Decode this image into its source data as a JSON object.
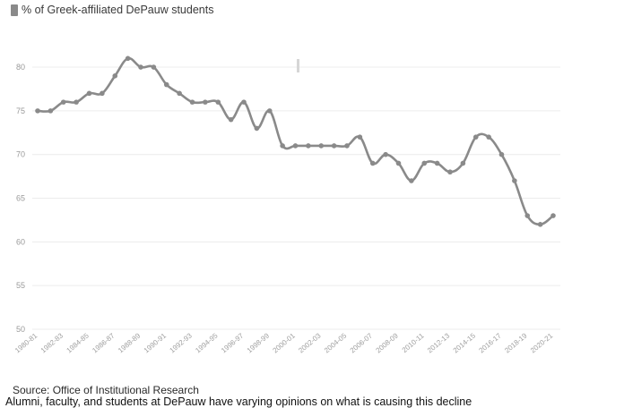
{
  "legend": {
    "label": "% of Greek-affiliated DePauw students",
    "color": "#8a8a8a"
  },
  "chart_data": {
    "type": "line",
    "title": "",
    "xlabel": "",
    "ylabel": "",
    "ylim": [
      50,
      84
    ],
    "yticks": [
      50,
      55,
      60,
      65,
      70,
      75,
      80
    ],
    "grid": true,
    "legend_position": "top-left",
    "line_color": "#8a8a8a",
    "x": [
      "1980-81",
      "1981-82",
      "1982-83",
      "1983-84",
      "1984-85",
      "1985-86",
      "1986-87",
      "1987-88",
      "1988-89",
      "1989-90",
      "1990-91",
      "1991-92",
      "1992-93",
      "1993-94",
      "1994-95",
      "1995-96",
      "1996-97",
      "1997-98",
      "1998-99",
      "1999-00",
      "2000-01",
      "2001-02",
      "2002-03",
      "2003-04",
      "2004-05",
      "2005-06",
      "2006-07",
      "2007-08",
      "2008-09",
      "2009-10",
      "2010-11",
      "2011-12",
      "2012-13",
      "2013-14",
      "2014-15",
      "2015-16",
      "2016-17",
      "2017-18",
      "2018-19",
      "2019-20",
      "2020-21"
    ],
    "x_tick_labels": [
      "1980-81",
      "1982-83",
      "1984-85",
      "1986-87",
      "1988-89",
      "1990-91",
      "1992-93",
      "1994-95",
      "1996-97",
      "1998-99",
      "2000-01",
      "2002-03",
      "2004-05",
      "2006-07",
      "2008-09",
      "2010-11",
      "2012-13",
      "2014-15",
      "2016-17",
      "2018-19",
      "2020-21"
    ],
    "series": [
      {
        "name": "% of Greek-affiliated DePauw students",
        "values": [
          75,
          75,
          76,
          76,
          77,
          77,
          79,
          81,
          80,
          80,
          78,
          77,
          76,
          76,
          76,
          74,
          76,
          73,
          75,
          71,
          71,
          71,
          71,
          71,
          71,
          72,
          69,
          70,
          69,
          67,
          69,
          69,
          68,
          69,
          72,
          72,
          70,
          67,
          63,
          62,
          63
        ]
      }
    ]
  },
  "source": "Source: Office of Institutional Research",
  "caption": "Alumni, faculty, and students at DePauw have varying opinions on what is causing this decline"
}
